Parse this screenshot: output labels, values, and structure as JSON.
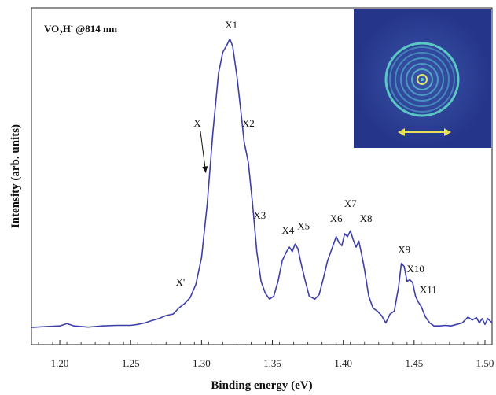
{
  "chart_data": {
    "type": "line",
    "title_parts": [
      "VO",
      "2",
      "H",
      "-",
      " @814 nm"
    ],
    "xlabel": "Binding energy (eV)",
    "ylabel": "Intensity (arb. units)",
    "xlim": [
      1.18,
      1.505
    ],
    "ylim": [
      0,
      1
    ],
    "xticks": [
      1.2,
      1.25,
      1.3,
      1.35,
      1.4,
      1.45,
      1.5
    ],
    "xtick_labels": [
      "1.20",
      "1.25",
      "1.30",
      "1.35",
      "1.40",
      "1.45",
      "1.50"
    ],
    "grid": false,
    "series_color": "#3d3fa8",
    "series": [
      {
        "x": [
          1.18,
          1.19,
          1.2,
          1.205,
          1.21,
          1.22,
          1.23,
          1.24,
          1.25,
          1.255,
          1.26,
          1.265,
          1.27,
          1.275,
          1.28,
          1.284,
          1.288,
          1.292,
          1.296,
          1.3,
          1.304,
          1.308,
          1.312,
          1.315,
          1.318,
          1.32,
          1.322,
          1.325,
          1.328,
          1.33,
          1.333,
          1.336,
          1.339,
          1.342,
          1.345,
          1.348,
          1.351,
          1.354,
          1.357,
          1.36,
          1.362,
          1.364,
          1.366,
          1.368,
          1.37,
          1.373,
          1.376,
          1.38,
          1.383,
          1.386,
          1.389,
          1.392,
          1.395,
          1.397,
          1.399,
          1.401,
          1.403,
          1.405,
          1.407,
          1.409,
          1.411,
          1.413,
          1.415,
          1.418,
          1.421,
          1.424,
          1.427,
          1.43,
          1.433,
          1.436,
          1.439,
          1.441,
          1.443,
          1.445,
          1.447,
          1.449,
          1.451,
          1.453,
          1.455,
          1.458,
          1.461,
          1.464,
          1.468,
          1.472,
          1.476,
          1.48,
          1.484,
          1.488,
          1.491,
          1.494,
          1.496,
          1.498,
          1.5,
          1.502,
          1.505
        ],
        "y": [
          0.005,
          0.008,
          0.01,
          0.018,
          0.01,
          0.006,
          0.01,
          0.012,
          0.012,
          0.015,
          0.02,
          0.028,
          0.035,
          0.045,
          0.05,
          0.07,
          0.085,
          0.105,
          0.15,
          0.24,
          0.42,
          0.66,
          0.86,
          0.93,
          0.955,
          0.975,
          0.95,
          0.85,
          0.72,
          0.63,
          0.56,
          0.42,
          0.26,
          0.16,
          0.12,
          0.1,
          0.11,
          0.16,
          0.23,
          0.26,
          0.275,
          0.26,
          0.285,
          0.27,
          0.225,
          0.165,
          0.11,
          0.1,
          0.115,
          0.17,
          0.23,
          0.27,
          0.31,
          0.29,
          0.28,
          0.32,
          0.31,
          0.33,
          0.3,
          0.275,
          0.295,
          0.25,
          0.2,
          0.11,
          0.07,
          0.06,
          0.045,
          0.02,
          0.05,
          0.06,
          0.14,
          0.22,
          0.21,
          0.16,
          0.165,
          0.155,
          0.11,
          0.09,
          0.075,
          0.04,
          0.02,
          0.01,
          0.01,
          0.012,
          0.01,
          0.015,
          0.02,
          0.04,
          0.03,
          0.038,
          0.02,
          0.035,
          0.015,
          0.035,
          0.02
        ]
      }
    ],
    "annotations": [
      {
        "text": "X'",
        "x": 1.285,
        "y": 0.145
      },
      {
        "text": "X",
        "x": 1.297,
        "y": 0.68,
        "arrow_to": [
          1.303,
          0.525
        ]
      },
      {
        "text": "X1",
        "x": 1.321,
        "y": 1.01
      },
      {
        "text": "X2",
        "x": 1.333,
        "y": 0.68
      },
      {
        "text": "X3",
        "x": 1.341,
        "y": 0.37
      },
      {
        "text": "X4",
        "x": 1.361,
        "y": 0.32
      },
      {
        "text": "X5",
        "x": 1.372,
        "y": 0.335
      },
      {
        "text": "X6",
        "x": 1.395,
        "y": 0.36
      },
      {
        "text": "X7",
        "x": 1.405,
        "y": 0.41
      },
      {
        "text": "X8",
        "x": 1.416,
        "y": 0.36
      },
      {
        "text": "X9",
        "x": 1.443,
        "y": 0.255
      },
      {
        "text": "X10",
        "x": 1.451,
        "y": 0.19
      },
      {
        "text": "X11",
        "x": 1.46,
        "y": 0.12
      }
    ],
    "inset": {
      "description_icon": "concentric-rings-photoelectron-image",
      "background_color": "#2a3a8c",
      "ring_color": "#5fd6c8",
      "arrow_color": "#e6e05a"
    }
  }
}
